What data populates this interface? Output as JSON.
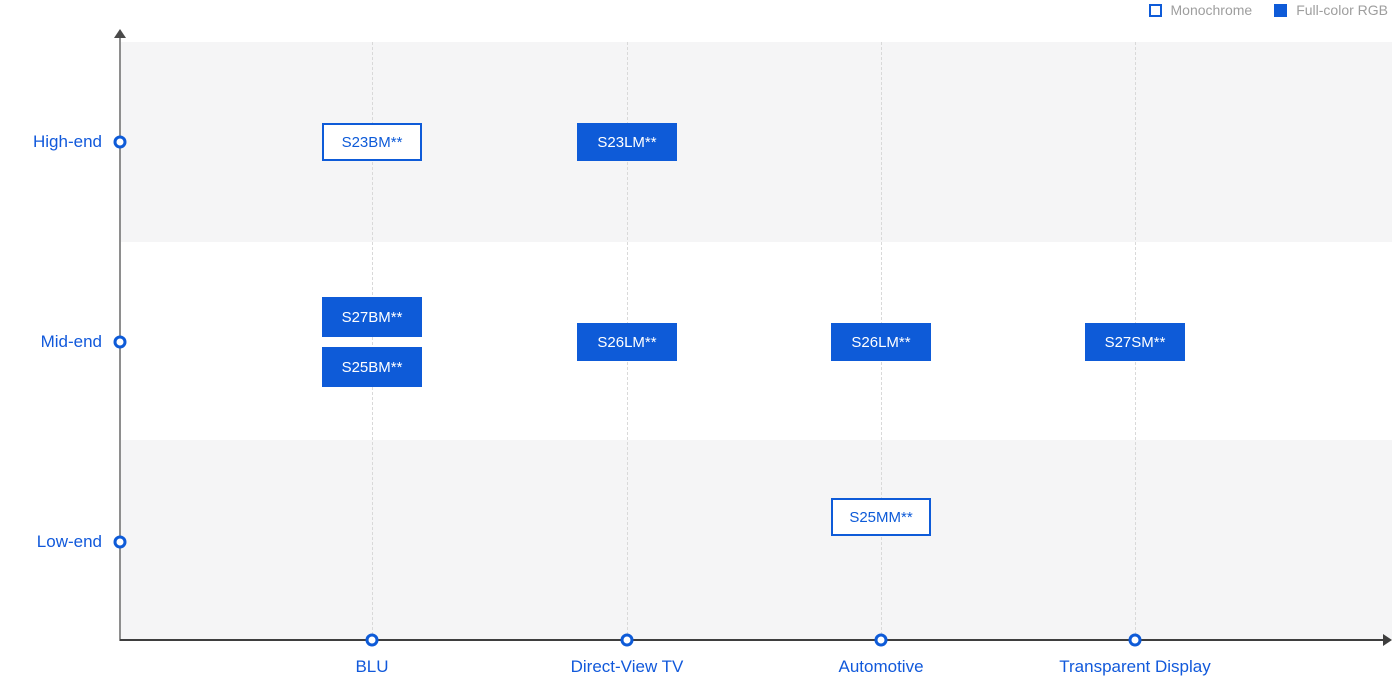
{
  "colors": {
    "accent_blue": "#0E5BD8",
    "axis_label_blue": "#1159DB",
    "band_gray": "#F5F5F6",
    "legend_text_gray": "#9E9E9E",
    "y_axis_gray": "#8E8E8E",
    "x_axis_dark": "#3E3E3E",
    "gridline_gray": "#D9D9D9"
  },
  "legend": {
    "items": [
      {
        "label": "Monochrome",
        "style": "outlined"
      },
      {
        "label": "Full-color RGB",
        "style": "filled"
      }
    ]
  },
  "chart_data": {
    "type": "scatter",
    "title": "",
    "x_categories": [
      "BLU",
      "Direct-View TV",
      "Automotive",
      "Transparent Display"
    ],
    "y_categories": [
      "High-end",
      "Mid-end",
      "Low-end"
    ],
    "legend_position": "top-right",
    "grid": "vertical-dashed",
    "band_shading": "High-end and Low-end rows shaded light gray",
    "series": [
      {
        "name": "Monochrome",
        "marker": "outlined-box",
        "points": [
          {
            "label": "S23BM**",
            "x": "BLU",
            "y": "High-end"
          },
          {
            "label": "S25MM**",
            "x": "Automotive",
            "y": "Low-end",
            "offset": "slightly above row line"
          }
        ]
      },
      {
        "name": "Full-color RGB",
        "marker": "filled-box",
        "points": [
          {
            "label": "S23LM**",
            "x": "Direct-View TV",
            "y": "High-end"
          },
          {
            "label": "S27BM**",
            "x": "BLU",
            "y": "Mid-end",
            "offset": "above row line"
          },
          {
            "label": "S25BM**",
            "x": "BLU",
            "y": "Mid-end",
            "offset": "below row line"
          },
          {
            "label": "S26LM**",
            "x": "Direct-View TV",
            "y": "Mid-end"
          },
          {
            "label": "S26LM**",
            "x": "Automotive",
            "y": "Mid-end"
          },
          {
            "label": "S27SM**",
            "x": "Transparent Display",
            "y": "Mid-end"
          }
        ]
      }
    ]
  }
}
